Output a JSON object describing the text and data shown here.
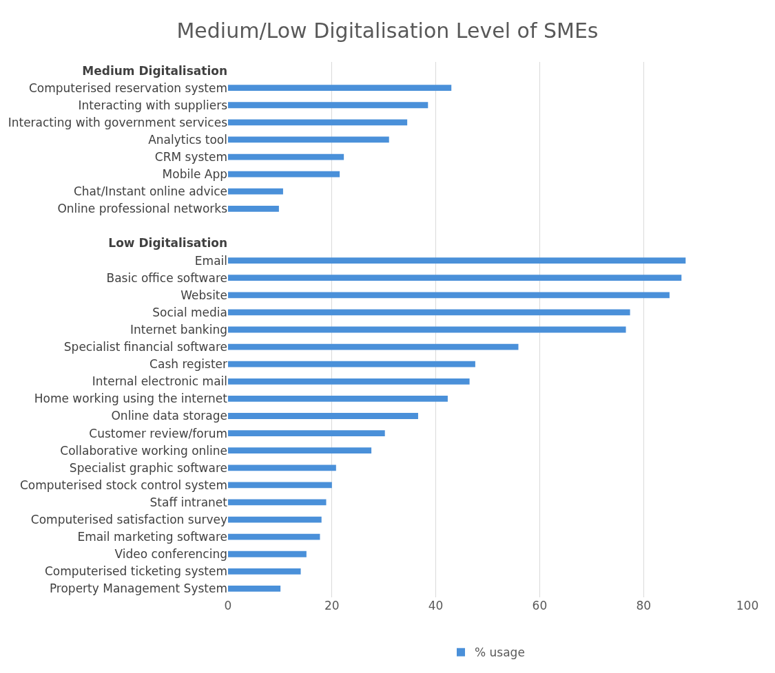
{
  "chart_data": {
    "type": "bar",
    "orientation": "horizontal",
    "title": "Medium/Low Digitalisation Level of SMEs",
    "categories": [
      "Medium Digitalisation",
      "Computerised reservation system",
      "Interacting with suppliers",
      "Interacting with government services",
      "Analytics tool",
      "CRM system",
      "Mobile App",
      "Chat/Instant online advice",
      "Online professional networks",
      null,
      "Low Digitalisation",
      "Email",
      "Basic office software",
      "Website",
      "Social media",
      "Internet banking",
      "Specialist financial software",
      "Cash register",
      "Internal electronic mail",
      "Home working using the internet",
      "Online data storage",
      "Customer review/forum",
      "Collaborative working online",
      "Specialist graphic software",
      "Computerised stock control system",
      "Staff intranet",
      "Computerised satisfaction survey",
      "Email marketing software",
      "Video conferencing",
      "Computerised ticketing system",
      "Property Management System"
    ],
    "series": [
      {
        "name": "% usage",
        "color": "#4a90d9",
        "values": [
          null,
          43,
          38.5,
          34.5,
          31,
          22.3,
          21.5,
          10.6,
          9.8,
          null,
          null,
          88.1,
          87.3,
          85,
          77.4,
          76.6,
          55.9,
          47.6,
          46.5,
          42.3,
          36.6,
          30.2,
          27.6,
          20.8,
          20,
          18.9,
          18,
          17.7,
          15.1,
          14,
          10.1
        ]
      }
    ],
    "xlim": [
      0,
      100
    ],
    "xticks": [
      0,
      20,
      40,
      60,
      80,
      100
    ],
    "grid": "x",
    "legend": "bottom"
  }
}
